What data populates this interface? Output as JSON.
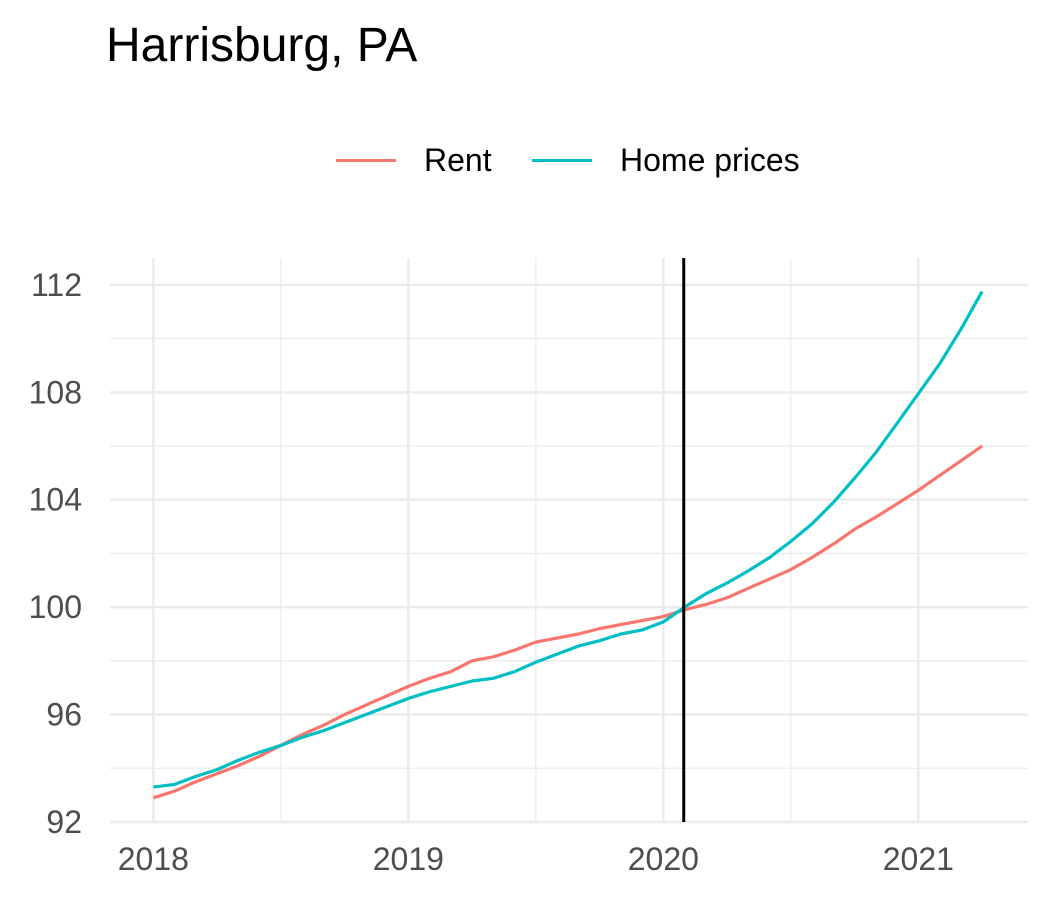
{
  "chart_data": {
    "type": "line",
    "title": "Harrisburg, PA",
    "xlabel": "",
    "ylabel": "",
    "xlim": [
      2017.83,
      2021.43
    ],
    "ylim": [
      92,
      113.0
    ],
    "x_ticks": [
      2018,
      2019,
      2020,
      2021
    ],
    "x_tick_labels": [
      "2018",
      "2019",
      "2020",
      "2021"
    ],
    "y_ticks": [
      92,
      96,
      100,
      104,
      108,
      112
    ],
    "y_tick_labels": [
      "92",
      "96",
      "100",
      "104",
      "108",
      "112"
    ],
    "grid": true,
    "legend_position": "top",
    "reference_line_x": 2020.08,
    "series": [
      {
        "name": "Rent",
        "color": "#F8766D",
        "points": [
          [
            2018.0,
            92.9
          ],
          [
            2018.083,
            93.15
          ],
          [
            2018.167,
            93.5
          ],
          [
            2018.25,
            93.8
          ],
          [
            2018.333,
            94.1
          ],
          [
            2018.417,
            94.45
          ],
          [
            2018.5,
            94.85
          ],
          [
            2018.583,
            95.25
          ],
          [
            2018.667,
            95.6
          ],
          [
            2018.75,
            96.0
          ],
          [
            2018.833,
            96.35
          ],
          [
            2018.917,
            96.7
          ],
          [
            2019.0,
            97.05
          ],
          [
            2019.083,
            97.35
          ],
          [
            2019.167,
            97.6
          ],
          [
            2019.25,
            98.0
          ],
          [
            2019.333,
            98.15
          ],
          [
            2019.417,
            98.4
          ],
          [
            2019.5,
            98.7
          ],
          [
            2019.583,
            98.85
          ],
          [
            2019.667,
            99.0
          ],
          [
            2019.75,
            99.2
          ],
          [
            2019.833,
            99.35
          ],
          [
            2019.917,
            99.5
          ],
          [
            2020.0,
            99.65
          ],
          [
            2020.083,
            99.9
          ],
          [
            2020.167,
            100.1
          ],
          [
            2020.25,
            100.35
          ],
          [
            2020.333,
            100.7
          ],
          [
            2020.417,
            101.05
          ],
          [
            2020.5,
            101.4
          ],
          [
            2020.583,
            101.85
          ],
          [
            2020.667,
            102.35
          ],
          [
            2020.75,
            102.9
          ],
          [
            2020.833,
            103.35
          ],
          [
            2020.917,
            103.85
          ],
          [
            2021.0,
            104.35
          ],
          [
            2021.083,
            104.9
          ],
          [
            2021.167,
            105.45
          ],
          [
            2021.25,
            106.0
          ]
        ]
      },
      {
        "name": "Home prices",
        "color": "#00BFC4",
        "points": [
          [
            2018.0,
            93.3
          ],
          [
            2018.083,
            93.4
          ],
          [
            2018.167,
            93.7
          ],
          [
            2018.25,
            93.95
          ],
          [
            2018.333,
            94.3
          ],
          [
            2018.417,
            94.6
          ],
          [
            2018.5,
            94.85
          ],
          [
            2018.583,
            95.15
          ],
          [
            2018.667,
            95.4
          ],
          [
            2018.75,
            95.7
          ],
          [
            2018.833,
            96.0
          ],
          [
            2018.917,
            96.3
          ],
          [
            2019.0,
            96.6
          ],
          [
            2019.083,
            96.85
          ],
          [
            2019.167,
            97.05
          ],
          [
            2019.25,
            97.25
          ],
          [
            2019.333,
            97.35
          ],
          [
            2019.417,
            97.6
          ],
          [
            2019.5,
            97.95
          ],
          [
            2019.583,
            98.25
          ],
          [
            2019.667,
            98.55
          ],
          [
            2019.75,
            98.75
          ],
          [
            2019.833,
            99.0
          ],
          [
            2019.917,
            99.15
          ],
          [
            2020.0,
            99.45
          ],
          [
            2020.083,
            100.0
          ],
          [
            2020.167,
            100.5
          ],
          [
            2020.25,
            100.9
          ],
          [
            2020.333,
            101.35
          ],
          [
            2020.417,
            101.85
          ],
          [
            2020.5,
            102.45
          ],
          [
            2020.583,
            103.1
          ],
          [
            2020.667,
            103.9
          ],
          [
            2020.75,
            104.8
          ],
          [
            2020.833,
            105.75
          ],
          [
            2020.917,
            106.85
          ],
          [
            2021.0,
            107.95
          ],
          [
            2021.083,
            109.05
          ],
          [
            2021.167,
            110.35
          ],
          [
            2021.25,
            111.75
          ]
        ]
      }
    ]
  }
}
